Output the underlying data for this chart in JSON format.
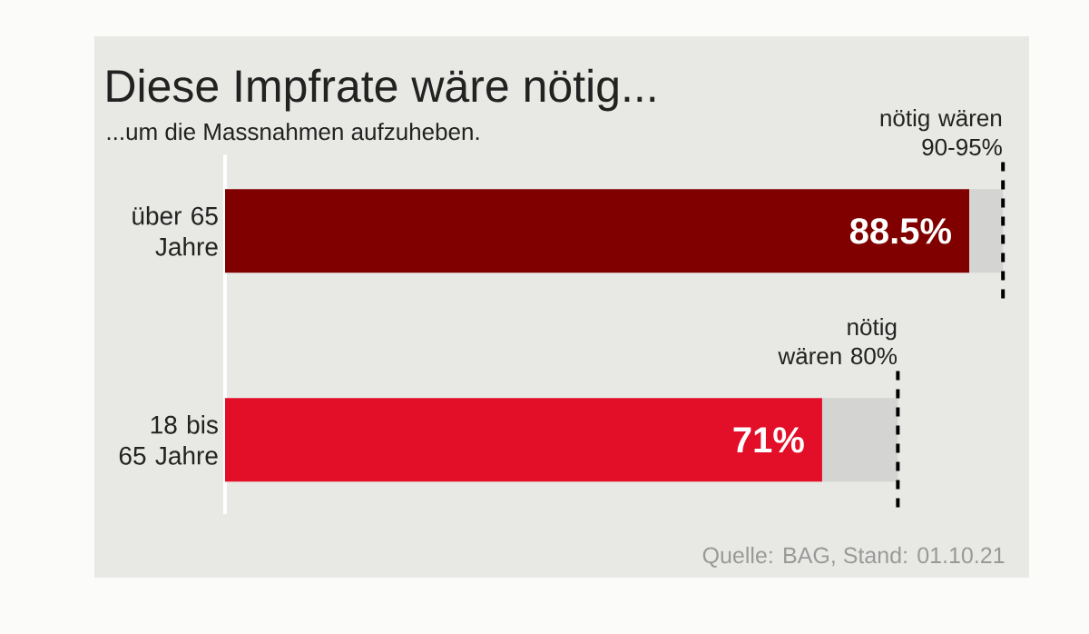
{
  "chart_data": {
    "type": "bar",
    "orientation": "horizontal",
    "stacked": true,
    "title": "Diese Impfrate wäre nötig...",
    "subtitle": "...um die Massnahmen aufzuheben.",
    "categories": [
      "über 65 Jahre",
      "18 bis 65 Jahre"
    ],
    "series": [
      {
        "colors": [
          "#800000",
          "#e30e28"
        ],
        "values": [
          88.5,
          71
        ],
        "value_labels": [
          "88.5%",
          "71%"
        ]
      },
      {
        "color": "#d4d4d2",
        "values": [
          4,
          9
        ]
      }
    ],
    "tick_labels": "y",
    "ref_lines": [
      {
        "axis": "x",
        "value": 92.5,
        "label": "nötig wären 90-95%",
        "color": "#000000",
        "line_style": "dashed"
      },
      {
        "axis": "x",
        "value": 80,
        "label": "nötig wären 80%",
        "color": "#000000",
        "line_style": "dashed"
      }
    ],
    "annotations": [
      "Quelle: BAG, Stand: 01.10.21"
    ]
  }
}
